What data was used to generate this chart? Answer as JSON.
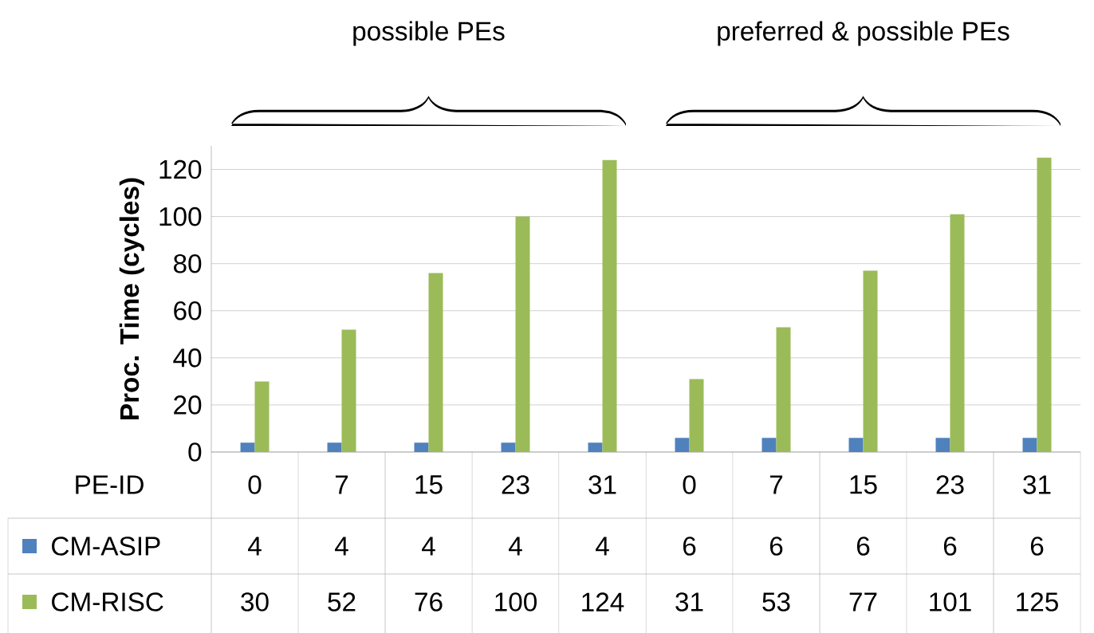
{
  "chart_data": {
    "type": "bar",
    "ylabel": "Proc. Time (cycles)",
    "xlabel": "PE-ID",
    "categories": [
      "0",
      "7",
      "15",
      "23",
      "31",
      "0",
      "7",
      "15",
      "23",
      "31"
    ],
    "series": [
      {
        "name": "CM-ASIP",
        "color": "#4f81bd",
        "values": [
          4,
          4,
          4,
          4,
          4,
          6,
          6,
          6,
          6,
          6
        ]
      },
      {
        "name": "CM-RISC",
        "color": "#9bbb59",
        "values": [
          30,
          52,
          76,
          100,
          124,
          31,
          53,
          77,
          101,
          125
        ]
      }
    ],
    "ylim": [
      0,
      130
    ],
    "yticks": [
      0,
      20,
      40,
      60,
      80,
      100,
      120
    ],
    "grid": "y",
    "data_labels": true,
    "legend": "bottom",
    "annotations": [
      "possible PEs",
      "preferred & possible PEs"
    ]
  }
}
